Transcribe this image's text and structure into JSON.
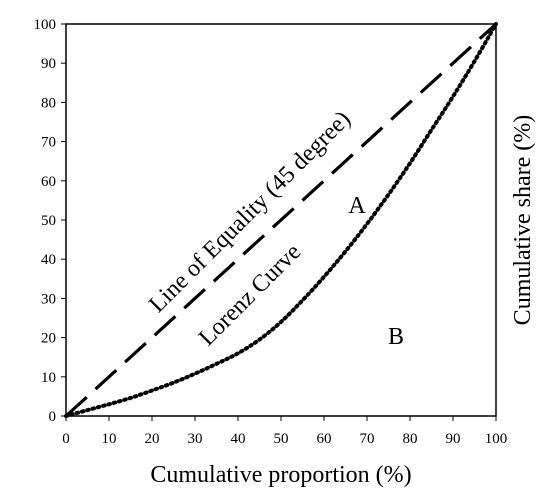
{
  "chart_data": {
    "type": "line",
    "title": "",
    "xlabel": "Cumulative proportion (%)",
    "ylabel": "Cumulative share (%)",
    "xlim": [
      0,
      100
    ],
    "ylim": [
      0,
      100
    ],
    "x_ticks": [
      0,
      10,
      20,
      30,
      40,
      50,
      60,
      70,
      80,
      90,
      100
    ],
    "y_ticks": [
      0,
      10,
      20,
      30,
      40,
      50,
      60,
      70,
      80,
      90,
      100
    ],
    "grid": false,
    "series": [
      {
        "style": "dashed",
        "color": "#000000",
        "x": [
          0,
          100
        ],
        "y": [
          0,
          100
        ]
      },
      {
        "style": "dotted",
        "color": "#000000",
        "x": [
          0,
          5,
          10,
          15,
          20,
          25,
          30,
          35,
          40,
          45,
          50,
          55,
          60,
          65,
          70,
          75,
          80,
          85,
          90,
          95,
          100
        ],
        "y": [
          0,
          1.5,
          3,
          4.6,
          6.5,
          8.5,
          10.8,
          13.3,
          16,
          19.5,
          24,
          29.5,
          35.5,
          42,
          49,
          56.5,
          64.5,
          73,
          81.5,
          90.5,
          100
        ]
      }
    ],
    "annotations": [
      {
        "id": "equality",
        "text": "Line of Equality (45 degree)"
      },
      {
        "id": "lorenz",
        "text": "Lorenz Curve"
      },
      {
        "id": "area_a",
        "text": "A"
      },
      {
        "id": "area_b",
        "text": "B"
      }
    ]
  }
}
